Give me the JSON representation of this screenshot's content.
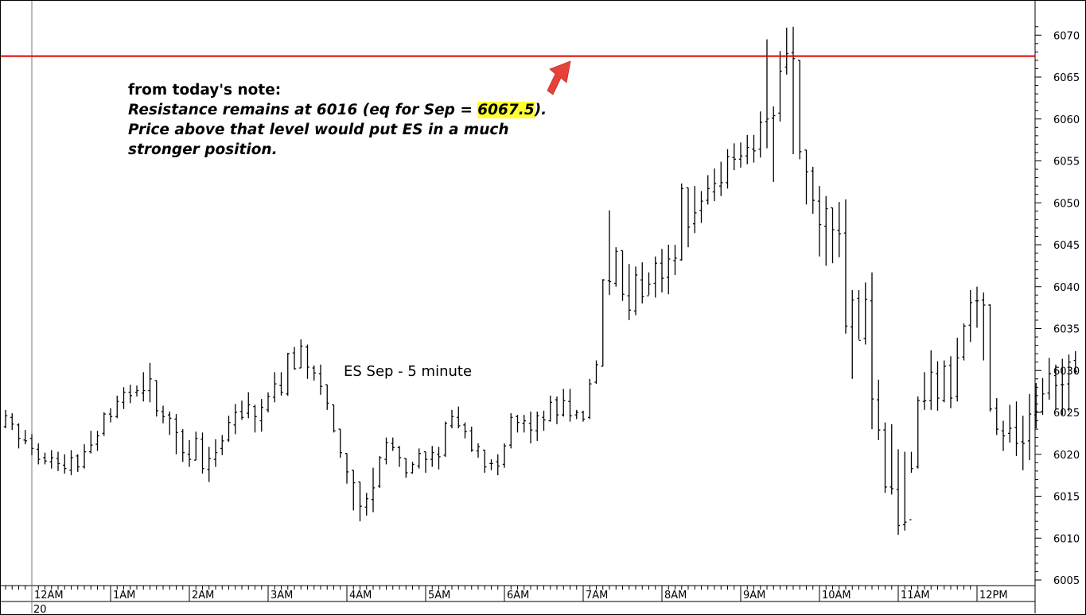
{
  "note": {
    "heading": "from today's note:",
    "line1_prefix": "Resistance remains at 6016 (eq for Sep = ",
    "line1_highlight": "6067.5",
    "line1_suffix": ").",
    "line2": "Price above that level would put ES in a much",
    "line3": "stronger position."
  },
  "colors": {
    "resistance_line": "#e00000",
    "arrow": "#e8413a",
    "highlight": "#ffff33",
    "bars": "#000000"
  },
  "chart_data": {
    "type": "ohlc",
    "title": "ES Sep - 5 minute",
    "ylim": [
      6005,
      6071.5
    ],
    "yticks": [
      6005,
      6010,
      6015,
      6020,
      6025,
      6030,
      6035,
      6040,
      6045,
      6050,
      6055,
      6060,
      6065,
      6070
    ],
    "xticks": [
      "12AM",
      "1AM",
      "2AM",
      "3AM",
      "4AM",
      "5AM",
      "6AM",
      "7AM",
      "8AM",
      "9AM",
      "10AM",
      "11AM",
      "12PM"
    ],
    "date_label": "20",
    "resistance_level": 6067.5,
    "bar_interval_minutes": 5,
    "first_bar_time": "11:40PM",
    "bars": [
      [
        6021.7,
        6022.6,
        6021.7,
        6022.1
      ],
      [
        6021.9,
        6022.5,
        6021.5,
        6022.2
      ],
      [
        6022.3,
        6023.0,
        6021.6,
        6022.5
      ],
      [
        6022.5,
        6023.4,
        6022.1,
        6023.0
      ],
      [
        6023.3,
        6025.3,
        6023.1,
        6024.6
      ],
      [
        6024.4,
        6024.9,
        6022.9,
        6023.6
      ],
      [
        6023.5,
        6023.7,
        6020.7,
        6021.9
      ],
      [
        6021.7,
        6022.9,
        6021.2,
        6021.6
      ],
      [
        6021.9,
        6022.4,
        6019.9,
        6020.7
      ],
      [
        6020.6,
        6021.3,
        6018.8,
        6019.4
      ],
      [
        6019.6,
        6020.2,
        6018.8,
        6019.2
      ],
      [
        6019.1,
        6020.5,
        6018.3,
        6019.6
      ],
      [
        6019.5,
        6020.3,
        6018.0,
        6018.9
      ],
      [
        6018.7,
        6020.0,
        6017.7,
        6018.3
      ],
      [
        6018.1,
        6020.5,
        6017.5,
        6019.6
      ],
      [
        6019.8,
        6020.0,
        6017.9,
        6018.5
      ],
      [
        6018.5,
        6021.2,
        6018.3,
        6020.3
      ],
      [
        6020.3,
        6022.8,
        6020.1,
        6021.1
      ],
      [
        6021.2,
        6022.8,
        6020.4,
        6022.2
      ],
      [
        6022.5,
        6025.0,
        6022.2,
        6024.8
      ],
      [
        6024.8,
        6025.5,
        6023.8,
        6024.5
      ],
      [
        6024.5,
        6027.0,
        6024.3,
        6026.3
      ],
      [
        6026.2,
        6028.0,
        6025.4,
        6027.4
      ],
      [
        6027.4,
        6028.3,
        6026.1,
        6027.0
      ],
      [
        6027.4,
        6028.2,
        6026.9,
        6027.6
      ],
      [
        6027.3,
        6029.8,
        6026.3,
        6027.6
      ],
      [
        6027.6,
        6030.9,
        6026.2,
        6029.0
      ],
      [
        6028.8,
        6028.8,
        6024.5,
        6025.2
      ],
      [
        6025.1,
        6025.8,
        6023.7,
        6024.5
      ],
      [
        6024.7,
        6025.1,
        6022.3,
        6024.3
      ],
      [
        6024.2,
        6024.8,
        6020.0,
        6022.6
      ],
      [
        6022.7,
        6023.0,
        6019.1,
        6020.2
      ],
      [
        6020.0,
        6021.7,
        6018.5,
        6019.4
      ],
      [
        6019.3,
        6022.7,
        6019.3,
        6021.9
      ],
      [
        6021.8,
        6022.6,
        6017.7,
        6018.3
      ],
      [
        6018.2,
        6020.9,
        6016.7,
        6019.5
      ],
      [
        6019.4,
        6021.8,
        6018.5,
        6020.2
      ],
      [
        6020.7,
        6022.3,
        6019.9,
        6021.6
      ],
      [
        6021.7,
        6024.6,
        6021.5,
        6023.8
      ],
      [
        6023.5,
        6026.0,
        6022.4,
        6025.0
      ],
      [
        6025.1,
        6026.4,
        6024.1,
        6024.4
      ],
      [
        6024.9,
        6027.4,
        6024.3,
        6025.9
      ],
      [
        6025.7,
        6025.9,
        6022.6,
        6024.5
      ],
      [
        6024.0,
        6026.6,
        6022.7,
        6025.6
      ],
      [
        6025.3,
        6027.4,
        6025.0,
        6026.9
      ],
      [
        6026.8,
        6029.8,
        6026.2,
        6028.4
      ],
      [
        6028.2,
        6029.8,
        6027.0,
        6027.4
      ],
      [
        6027.2,
        6032.1,
        6027.0,
        6032.0
      ],
      [
        6032.1,
        6032.8,
        6030.1,
        6030.2
      ],
      [
        6030.3,
        6033.7,
        6030.3,
        6032.9
      ],
      [
        6032.8,
        6033.1,
        6029.0,
        6030.4
      ],
      [
        6030.3,
        6030.6,
        6028.8,
        6029.7
      ],
      [
        6029.6,
        6030.7,
        6027.1,
        6028.1
      ],
      [
        6028.3,
        6028.3,
        6025.3,
        6026.1
      ],
      [
        6025.9,
        6025.9,
        6022.6,
        6022.8
      ],
      [
        6023.0,
        6023.0,
        6019.6,
        6020.2
      ],
      [
        6020.1,
        6020.1,
        6016.5,
        6017.9
      ],
      [
        6018.1,
        6018.1,
        6013.3,
        6016.6
      ],
      [
        6016.7,
        6016.7,
        6012.0,
        6013.8
      ],
      [
        6013.7,
        6015.4,
        6012.7,
        6014.7
      ],
      [
        6014.6,
        6018.4,
        6013.1,
        6016.0
      ],
      [
        6016.2,
        6019.8,
        6016.0,
        6019.6
      ],
      [
        6019.4,
        6022.0,
        6018.8,
        6021.4
      ],
      [
        6021.3,
        6022.0,
        6020.4,
        6020.8
      ],
      [
        6020.8,
        6021.0,
        6018.5,
        6019.6
      ],
      [
        6019.5,
        6019.5,
        6017.2,
        6017.8
      ],
      [
        6017.8,
        6019.1,
        6017.7,
        6018.8
      ],
      [
        6018.6,
        6020.7,
        6018.3,
        6020.1
      ],
      [
        6020.3,
        6020.3,
        6017.8,
        6019.4
      ],
      [
        6019.4,
        6021.0,
        6018.5,
        6020.2
      ],
      [
        6020.0,
        6020.9,
        6018.2,
        6019.7
      ],
      [
        6019.9,
        6023.9,
        6019.7,
        6023.7
      ],
      [
        6023.4,
        6025.3,
        6023.1,
        6024.5
      ],
      [
        6024.4,
        6025.7,
        6023.1,
        6023.4
      ],
      [
        6023.5,
        6023.8,
        6021.9,
        6022.7
      ],
      [
        6022.8,
        6023.3,
        6020.3,
        6020.5
      ],
      [
        6020.4,
        6021.3,
        6019.6,
        6020.9
      ],
      [
        6020.5,
        6020.5,
        6017.8,
        6018.5
      ],
      [
        6018.9,
        6019.4,
        6018.1,
        6018.9
      ],
      [
        6019.1,
        6020.0,
        6017.5,
        6018.6
      ],
      [
        6018.8,
        6021.3,
        6018.4,
        6021.0
      ],
      [
        6021.1,
        6024.9,
        6020.7,
        6024.4
      ],
      [
        6024.5,
        6024.7,
        6022.6,
        6023.8
      ],
      [
        6023.7,
        6024.7,
        6022.6,
        6024.0
      ],
      [
        6023.7,
        6025.1,
        6021.3,
        6022.9
      ],
      [
        6022.8,
        6025.1,
        6021.6,
        6024.6
      ],
      [
        6024.4,
        6025.2,
        6022.8,
        6024.1
      ],
      [
        6024.0,
        6027.0,
        6023.9,
        6026.2
      ],
      [
        6026.5,
        6026.9,
        6023.6,
        6024.7
      ],
      [
        6024.7,
        6027.8,
        6024.5,
        6026.4
      ],
      [
        6026.3,
        6027.8,
        6023.9,
        6024.6
      ],
      [
        6024.7,
        6025.3,
        6024.2,
        6025.0
      ],
      [
        6025.0,
        6025.2,
        6023.9,
        6024.2
      ],
      [
        6024.4,
        6029.0,
        6024.2,
        6028.4
      ],
      [
        6028.6,
        6031.2,
        6028.4,
        6030.7
      ],
      [
        6030.5,
        6040.9,
        6030.5,
        6040.8
      ],
      [
        6040.7,
        6049.1,
        6039.0,
        6040.6
      ],
      [
        6040.4,
        6044.7,
        6040.0,
        6044.2
      ],
      [
        6044.3,
        6044.3,
        6038.3,
        6039.1
      ],
      [
        6038.9,
        6042.7,
        6036.0,
        6037.2
      ],
      [
        6037.1,
        6042.4,
        6036.6,
        6041.4
      ],
      [
        6040.8,
        6042.9,
        6038.0,
        6038.8
      ],
      [
        6038.9,
        6041.7,
        6039.0,
        6040.3
      ],
      [
        6040.4,
        6043.6,
        6038.7,
        6042.8
      ],
      [
        6042.8,
        6044.5,
        6039.3,
        6041.0
      ],
      [
        6041.1,
        6045.0,
        6039.1,
        6043.3
      ],
      [
        6043.1,
        6045.0,
        6041.4,
        6043.4
      ],
      [
        6043.2,
        6052.3,
        6043.1,
        6051.7
      ],
      [
        6051.8,
        6051.8,
        6044.7,
        6047.1
      ],
      [
        6047.5,
        6052.0,
        6046.4,
        6048.8
      ],
      [
        6049.1,
        6051.4,
        6047.6,
        6050.2
      ],
      [
        6050.3,
        6053.3,
        6049.8,
        6051.7
      ],
      [
        6051.3,
        6054.1,
        6050.2,
        6052.3
      ],
      [
        6052.0,
        6054.9,
        6050.8,
        6052.4
      ],
      [
        6052.4,
        6056.4,
        6051.7,
        6055.5
      ],
      [
        6055.4,
        6057.1,
        6053.9,
        6055.2
      ],
      [
        6055.2,
        6057.2,
        6054.2,
        6055.6
      ],
      [
        6055.6,
        6058.1,
        6054.6,
        6056.6
      ],
      [
        6056.4,
        6058.1,
        6054.8,
        6056.2
      ],
      [
        6056.4,
        6060.9,
        6055.4,
        6059.6
      ],
      [
        6059.7,
        6069.5,
        6056.5,
        6060.0
      ],
      [
        6060.1,
        6061.5,
        6052.5,
        6060.4
      ],
      [
        6060.7,
        6068.1,
        6059.7,
        6065.7
      ],
      [
        6066.2,
        6070.9,
        6065.3,
        6067.8
      ],
      [
        6067.9,
        6071.0,
        6055.8,
        6067.2
      ],
      [
        6067.0,
        6067.0,
        6055.2,
        6056.1
      ],
      [
        6056.3,
        6056.3,
        6049.8,
        6053.7
      ],
      [
        6053.8,
        6054.3,
        6048.7,
        6050.3
      ],
      [
        6050.2,
        6052.0,
        6043.6,
        6047.4
      ],
      [
        6047.2,
        6050.8,
        6042.5,
        6049.3
      ],
      [
        6049.4,
        6049.4,
        6042.8,
        6046.8
      ],
      [
        6046.7,
        6050.1,
        6043.5,
        6046.3
      ],
      [
        6046.4,
        6050.4,
        6034.4,
        6035.3
      ],
      [
        6035.2,
        6039.6,
        6029.0,
        6038.4
      ],
      [
        6038.6,
        6039.6,
        6033.7,
        6033.6
      ],
      [
        6033.8,
        6040.5,
        6033.1,
        6038.5
      ],
      [
        6038.3,
        6041.7,
        6023.0,
        6026.6
      ],
      [
        6026.5,
        6028.9,
        6021.7,
        6022.9
      ],
      [
        6022.9,
        6023.8,
        6015.4,
        6016.1
      ],
      [
        6016.1,
        6023.6,
        6015.2,
        6015.9
      ],
      [
        6015.8,
        6020.6,
        6010.4,
        6011.5
      ],
      [
        6011.6,
        6020.3,
        6010.9,
        6011.9
      ],
      [
        6012.2,
        6020.3,
        6017.8,
        6018.3
      ],
      [
        6018.5,
        6026.9,
        6018.3,
        6026.4
      ],
      [
        6026.3,
        6029.8,
        6025.3,
        6026.4
      ],
      [
        6026.4,
        6032.4,
        6025.3,
        6029.8
      ],
      [
        6029.6,
        6031.1,
        6025.2,
        6026.7
      ],
      [
        6026.4,
        6031.2,
        6026.2,
        6030.5
      ],
      [
        6030.6,
        6031.7,
        6025.5,
        6026.7
      ],
      [
        6026.9,
        6033.9,
        6026.3,
        6031.5
      ],
      [
        6031.6,
        6035.6,
        6031.2,
        6035.3
      ],
      [
        6035.4,
        6039.6,
        6033.4,
        6038.1
      ],
      [
        6038.3,
        6040.0,
        6035.1,
        6038.3
      ],
      [
        6038.4,
        6039.3,
        6031.2,
        6037.8
      ],
      [
        6037.8,
        6037.9,
        6025.1,
        6025.4
      ],
      [
        6025.5,
        6026.7,
        6022.3,
        6023.0
      ],
      [
        6022.8,
        6024.0,
        6020.4,
        6022.2
      ],
      [
        6022.5,
        6025.9,
        6021.4,
        6023.1
      ],
      [
        6023.2,
        6026.3,
        6019.8,
        6021.3
      ],
      [
        6021.5,
        6024.6,
        6018.1,
        6021.3
      ],
      [
        6021.6,
        6027.2,
        6019.3,
        6024.8
      ],
      [
        6024.7,
        6028.5,
        6023.1,
        6025.1
      ],
      [
        6025.1,
        6029.1,
        6024.7,
        6027.2
      ],
      [
        6027.3,
        6031.5,
        6026.5,
        6029.6
      ],
      [
        6029.4,
        6030.7,
        6025.3,
        6028.2
      ],
      [
        6028.3,
        6031.4,
        6024.7,
        6028.3
      ],
      [
        6028.4,
        6031.9,
        6025.1,
        6031.0
      ],
      [
        6031.2,
        6032.3,
        6029.6,
        6029.9
      ]
    ]
  }
}
